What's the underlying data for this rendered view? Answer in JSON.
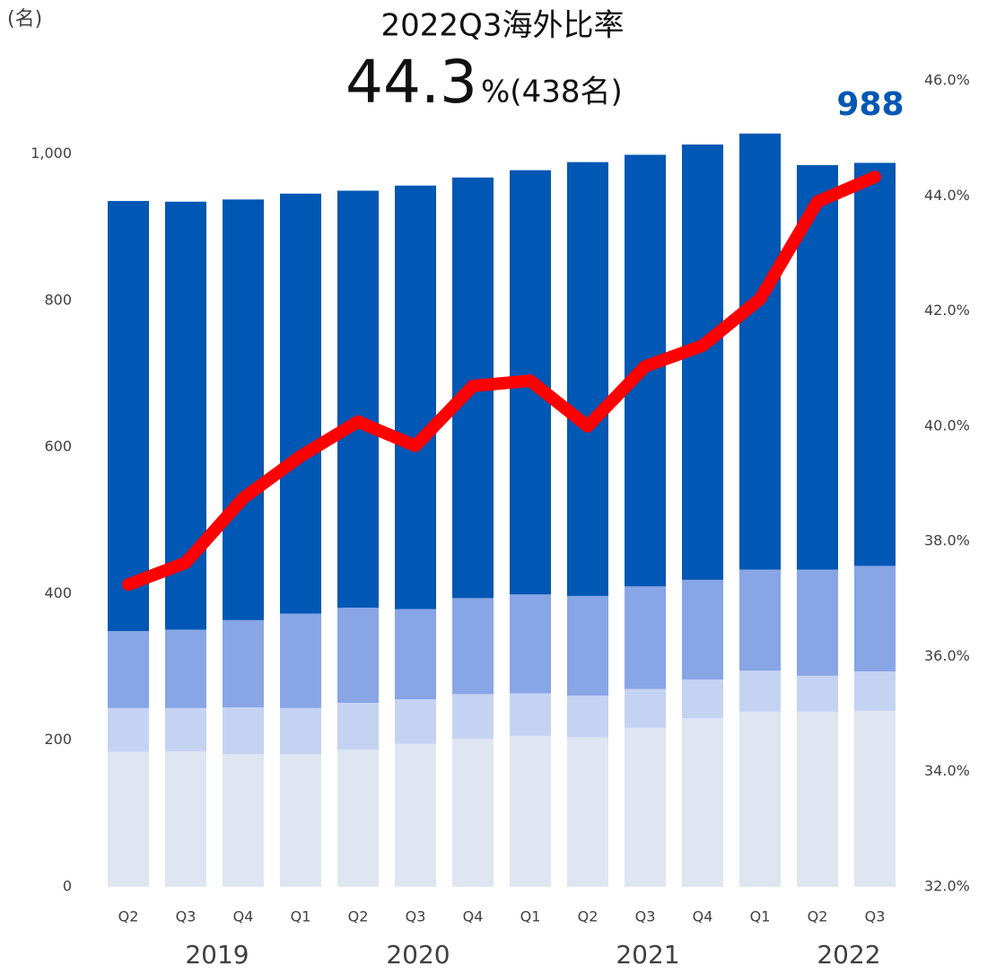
{
  "chart_data": {
    "type": "stacked_bar_line",
    "title": "2022Q3海外比率",
    "headline_value": "44.3",
    "headline_suffix": "%(438名)",
    "y_unit_label": "(名)",
    "annotation": "988",
    "annotation_color": "#0057b4",
    "categories": [
      "Q2",
      "Q3",
      "Q4",
      "Q1",
      "Q2",
      "Q3",
      "Q4",
      "Q1",
      "Q2",
      "Q3",
      "Q4",
      "Q1",
      "Q2",
      "Q3"
    ],
    "year_labels": [
      "2019",
      "2020",
      "2021",
      "2022"
    ],
    "series": [
      {
        "color": "#dfe6f1",
        "values": [
          184,
          185,
          181,
          181,
          187,
          195,
          202,
          206,
          204,
          217,
          230,
          239,
          239,
          240
        ]
      },
      {
        "color": "#c5d3f2",
        "values": [
          60,
          59,
          64,
          63,
          64,
          61,
          61,
          58,
          57,
          53,
          53,
          56,
          49,
          54
        ]
      },
      {
        "color": "#88a5e6",
        "values": [
          105,
          107,
          119,
          129,
          130,
          123,
          131,
          135,
          136,
          140,
          136,
          138,
          145,
          144
        ]
      },
      {
        "color": "#0057b4",
        "values": [
          587,
          584,
          574,
          573,
          569,
          578,
          574,
          579,
          592,
          589,
          594,
          595,
          552,
          550
        ]
      },
      {
        "type": "line",
        "axis": "y2",
        "color": "#ff0000",
        "values": [
          37.25,
          37.63,
          38.75,
          39.48,
          40.08,
          39.66,
          40.7,
          40.79,
          40.0,
          41.04,
          41.4,
          42.21,
          43.9,
          44.33
        ]
      }
    ],
    "ylim": [
      0,
      1100
    ],
    "yticks": [
      0,
      200,
      400,
      600,
      800,
      {
        "value": 1000,
        "label": "1,000"
      }
    ],
    "y2lim": [
      32,
      46
    ],
    "y2ticks": [
      {
        "value": 32,
        "label": "32.0%"
      },
      {
        "value": 34,
        "label": "34.0%"
      },
      {
        "value": 36,
        "label": "36.0%"
      },
      {
        "value": 38,
        "label": "38.0%"
      },
      {
        "value": 40,
        "label": "40.0%"
      },
      {
        "value": 42,
        "label": "42.0%"
      },
      {
        "value": 44,
        "label": "44.0%"
      },
      {
        "value": 46,
        "label": "46.0%"
      }
    ]
  }
}
